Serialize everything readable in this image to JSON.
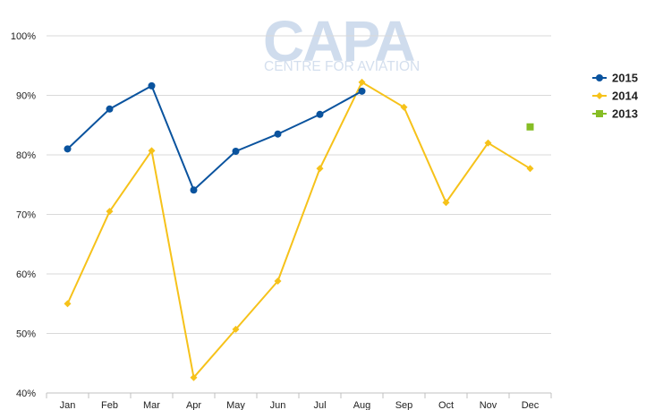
{
  "watermark": {
    "logo_text": "CAPA",
    "tagline": "CENTRE FOR AVIATION"
  },
  "chart_data": {
    "type": "line",
    "categories": [
      "Jan",
      "Feb",
      "Mar",
      "Apr",
      "May",
      "Jun",
      "Jul",
      "Aug",
      "Sep",
      "Oct",
      "Nov",
      "Dec"
    ],
    "y_ticks": [
      "40%",
      "50%",
      "60%",
      "70%",
      "80%",
      "90%",
      "100%"
    ],
    "ylim": [
      40,
      100
    ],
    "y_unit": "%",
    "grid": true,
    "legend_position": "right",
    "series": [
      {
        "name": "2015",
        "color": "#0a539e",
        "marker": "circle",
        "values": [
          81.0,
          87.7,
          91.6,
          74.1,
          80.6,
          83.5,
          86.8,
          90.7,
          null,
          null,
          null,
          null
        ]
      },
      {
        "name": "2014",
        "color": "#f6c21a",
        "marker": "diamond",
        "values": [
          55.0,
          70.5,
          80.7,
          42.6,
          50.7,
          58.8,
          77.7,
          92.2,
          88.0,
          72.0,
          82.0,
          77.7
        ]
      },
      {
        "name": "2013",
        "color": "#86bd25",
        "marker": "square",
        "values": [
          null,
          null,
          null,
          null,
          null,
          null,
          null,
          null,
          null,
          null,
          null,
          84.7
        ]
      }
    ]
  }
}
